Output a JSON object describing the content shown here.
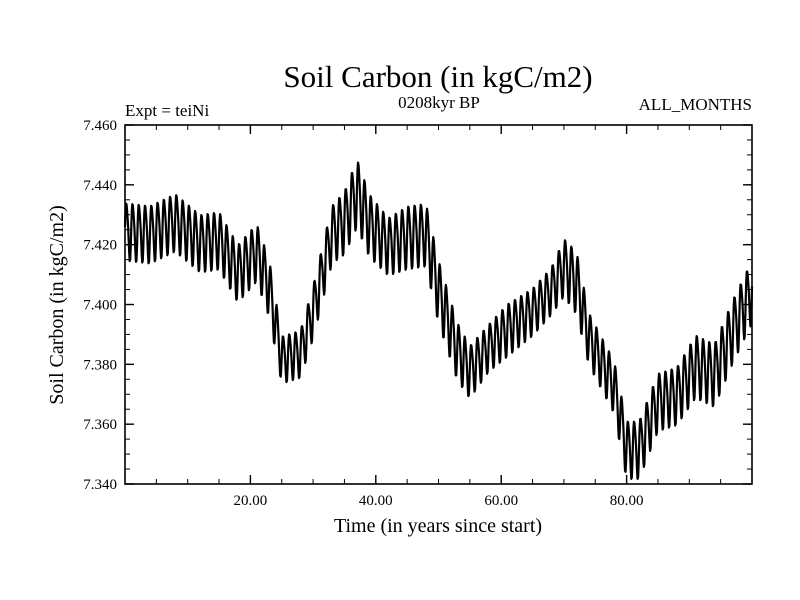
{
  "chart_data": {
    "type": "line",
    "title": "Soil Carbon (in kgC/m2)",
    "subtitle_left": "Expt = teiNi",
    "subtitle_center": "0208kyr BP",
    "subtitle_right": "ALL_MONTHS",
    "xlabel": "Time (in years since start)",
    "ylabel": "Soil Carbon (in kgC/m2)",
    "xlim": [
      0,
      100
    ],
    "ylim": [
      7.34,
      7.46
    ],
    "x_ticks": [
      20,
      40,
      60,
      80
    ],
    "x_tick_labels": [
      "20.00",
      "40.00",
      "60.00",
      "80.00"
    ],
    "y_ticks": [
      7.34,
      7.36,
      7.38,
      7.4,
      7.42,
      7.44,
      7.46
    ],
    "y_tick_labels": [
      "7.340",
      "7.360",
      "7.380",
      "7.400",
      "7.420",
      "7.440",
      "7.460"
    ],
    "seasonal_cycle_years": 1,
    "trend_x": [
      0,
      4,
      8,
      12,
      15,
      18,
      21,
      23,
      25,
      28,
      30,
      33,
      35,
      37,
      39,
      42,
      45,
      48,
      50,
      53,
      55,
      58,
      61,
      65,
      68,
      70,
      72,
      74,
      78,
      80,
      82,
      85,
      88,
      91,
      94,
      97,
      100
    ],
    "trend_y": [
      7.425,
      7.424,
      7.428,
      7.421,
      7.422,
      7.411,
      7.418,
      7.406,
      7.382,
      7.384,
      7.398,
      7.424,
      7.428,
      7.438,
      7.427,
      7.42,
      7.423,
      7.424,
      7.405,
      7.385,
      7.378,
      7.386,
      7.392,
      7.398,
      7.405,
      7.413,
      7.408,
      7.389,
      7.373,
      7.352,
      7.352,
      7.368,
      7.37,
      7.38,
      7.377,
      7.392,
      7.405
    ],
    "seasonal_amplitude": [
      0.011,
      0.011,
      0.011,
      0.011,
      0.011,
      0.011,
      0.011,
      0.011,
      0.009,
      0.009,
      0.01,
      0.011,
      0.012,
      0.013,
      0.012,
      0.011,
      0.012,
      0.012,
      0.012,
      0.011,
      0.01,
      0.009,
      0.01,
      0.009,
      0.009,
      0.011,
      0.012,
      0.01,
      0.01,
      0.011,
      0.011,
      0.011,
      0.011,
      0.012,
      0.012,
      0.012,
      0.012
    ]
  }
}
